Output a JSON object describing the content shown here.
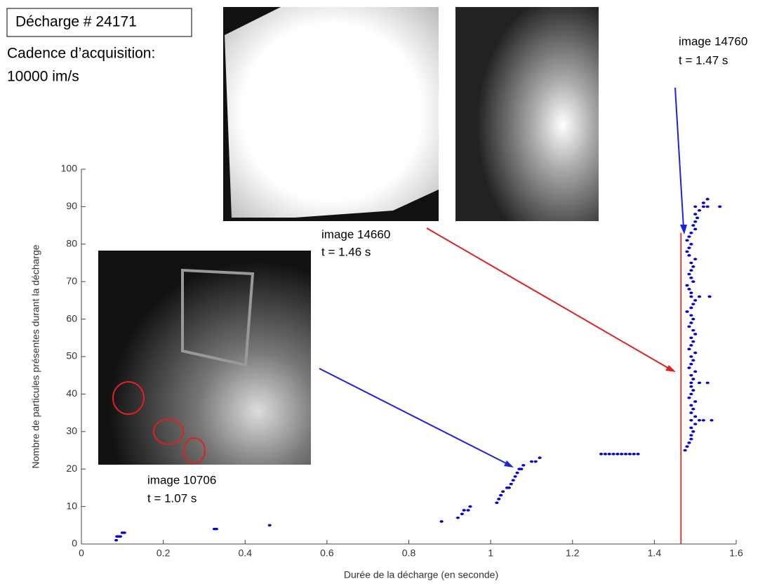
{
  "chart_data": {
    "type": "scatter",
    "header": "Décharge # 24171",
    "acquisition_label": "Cadence d’acquisition:",
    "acquisition_rate": "10000 im/s",
    "annotations": [
      {
        "image": "image  14660",
        "time": "t = 1.46 s"
      },
      {
        "image": "image  14760",
        "time": "t = 1.47 s"
      },
      {
        "image": "image  10706",
        "time": "t = 1.07 s"
      }
    ],
    "x_label": "Durée de la décharge (en seconde)",
    "y_label": "Nombre de particules présentes durant la décharge",
    "color": "#0000cc",
    "vline": {
      "x": 1.465,
      "color": "#ff0000"
    },
    "x": [
      0.085,
      0.087,
      0.09,
      0.095,
      0.1,
      0.105,
      0.325,
      0.33,
      0.46,
      0.88,
      0.92,
      0.93,
      0.935,
      0.945,
      0.95,
      1.015,
      1.02,
      1.025,
      1.03,
      1.04,
      1.045,
      1.05,
      1.055,
      1.06,
      1.065,
      1.07,
      1.075,
      1.08,
      1.1,
      1.11,
      1.12,
      1.27,
      1.28,
      1.29,
      1.3,
      1.31,
      1.32,
      1.33,
      1.34,
      1.35,
      1.36,
      1.475,
      1.48,
      1.485,
      1.49,
      1.49,
      1.495,
      1.49,
      1.5,
      1.54,
      1.5,
      1.49,
      1.495,
      1.49,
      1.5,
      1.485,
      1.49,
      1.495,
      1.49,
      1.53,
      1.495,
      1.49,
      1.5,
      1.485,
      1.49,
      1.495,
      1.49,
      1.5,
      1.485,
      1.49,
      1.495,
      1.49,
      1.5,
      1.495,
      1.485,
      1.49,
      1.495,
      1.49,
      1.48,
      1.49,
      1.495,
      1.5,
      1.535,
      1.49,
      1.485,
      1.48,
      1.495,
      1.49,
      1.485,
      1.49,
      1.495,
      1.49,
      1.5,
      1.485,
      1.48,
      1.485,
      1.49,
      1.48,
      1.485,
      1.49,
      1.5,
      1.495,
      1.5,
      1.505,
      1.5,
      1.51,
      1.56,
      1.52,
      1.53,
      1.49,
      1.51,
      1.52,
      1.49,
      1.51,
      1.49,
      1.51,
      1.5,
      1.52,
      1.53
    ],
    "values": [
      1,
      2,
      2,
      2,
      3,
      3,
      4,
      4,
      5,
      6,
      7,
      8,
      9,
      9,
      10,
      11,
      12,
      13,
      14,
      15,
      15,
      16,
      17,
      18,
      19,
      20,
      20,
      21,
      22,
      22,
      23,
      24,
      24,
      24,
      24,
      24,
      24,
      24,
      24,
      24,
      24,
      25,
      26,
      27,
      28,
      29,
      30,
      31,
      32,
      33,
      34,
      35,
      36,
      37,
      38,
      39,
      40,
      41,
      42,
      43,
      44,
      45,
      46,
      47,
      48,
      49,
      50,
      51,
      52,
      53,
      54,
      55,
      56,
      57,
      58,
      59,
      60,
      61,
      62,
      63,
      64,
      65,
      66,
      67,
      68,
      69,
      70,
      71,
      72,
      73,
      74,
      75,
      76,
      77,
      78,
      79,
      80,
      81,
      82,
      83,
      84,
      85,
      86,
      87,
      88,
      89,
      90,
      91,
      92,
      33,
      33,
      33,
      43,
      43,
      66,
      66,
      90,
      90,
      90
    ],
    "xlim": [
      0,
      1.6
    ],
    "xticks": [
      0,
      0.2,
      0.4,
      0.6,
      0.8,
      1,
      1.2,
      1.4,
      1.6
    ],
    "ylim": [
      0,
      100
    ],
    "yticks": [
      0,
      10,
      20,
      30,
      40,
      50,
      60,
      70,
      80,
      90,
      100
    ]
  }
}
